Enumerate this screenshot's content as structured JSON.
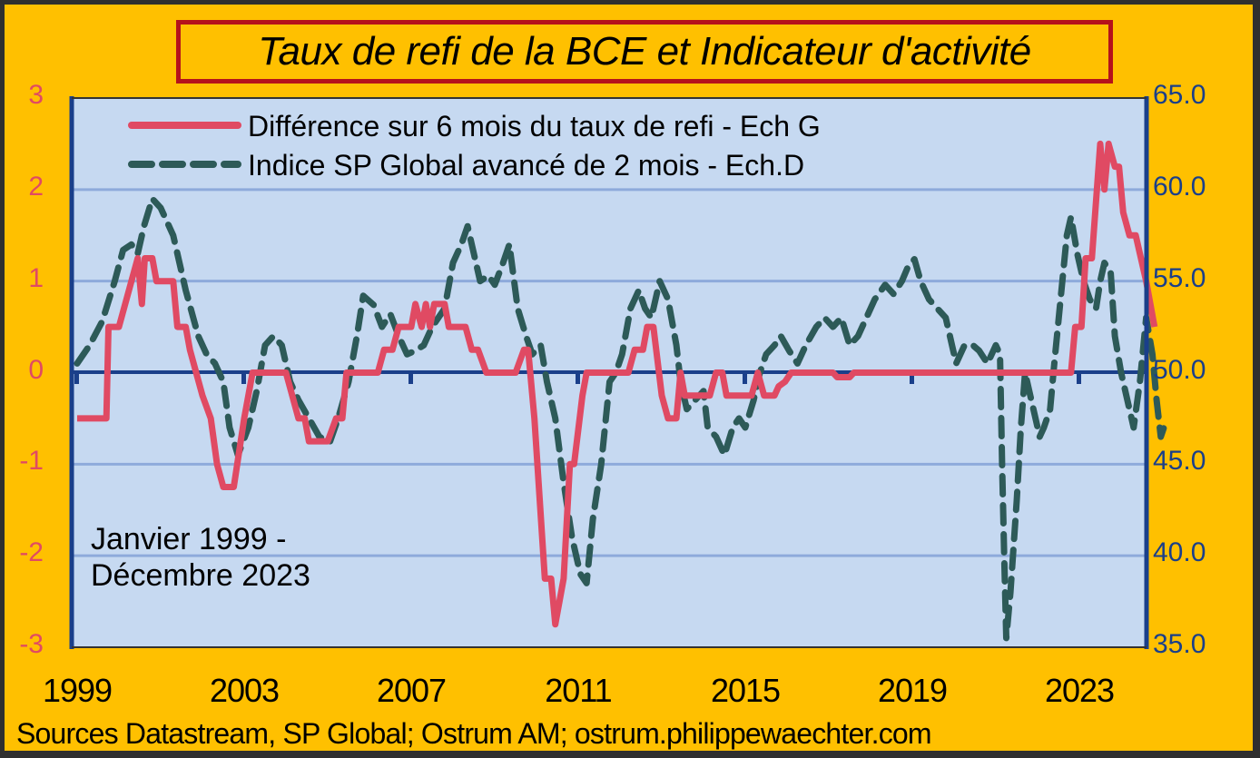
{
  "title": "Taux de refi de la BCE et Indicateur d'activité",
  "source": "Sources Datastream, SP Global; Ostrum AM; ostrum.philippewaechter.com",
  "annotation": {
    "line1": "Janvier 1999 -",
    "line2": "Décembre 2023"
  },
  "colors": {
    "background": "#ffc000",
    "plot_bg": "#c6d9f1",
    "grid": "#8eaadb",
    "zero_line": "#1a3f8a",
    "refi": "#e04a63",
    "pmi": "#2d5a58",
    "title_border": "#b5121b",
    "left_axis": "#e04a63",
    "right_axis": "#1a3f8a"
  },
  "chart_data": {
    "type": "line",
    "title": "Taux de refi de la BCE et Indicateur d'activité",
    "xlabel": "",
    "x_ticks": [
      "1999",
      "2003",
      "2007",
      "2011",
      "2015",
      "2019",
      "2023"
    ],
    "x_range": [
      1999.0,
      2024.0
    ],
    "left_axis": {
      "label": "Ech G",
      "ticks": [
        "3",
        "2",
        "1",
        "0",
        "-1",
        "-2",
        "-3"
      ],
      "ylim": [
        -3,
        3
      ]
    },
    "right_axis": {
      "label": "Ech.D",
      "ticks": [
        "65.0",
        "60.0",
        "55.0",
        "50.0",
        "45.0",
        "40.0",
        "35.0"
      ],
      "ylim": [
        35,
        65
      ]
    },
    "grid": true,
    "legend_position": "top-left inside",
    "series": [
      {
        "name": "Différence sur 6 mois du taux de refi - Ech G",
        "axis": "left",
        "style": "solid",
        "points": [
          [
            1999.0,
            -0.5
          ],
          [
            1999.7,
            -0.5
          ],
          [
            1999.75,
            0.5
          ],
          [
            2000.0,
            0.5
          ],
          [
            2000.3,
            1.0
          ],
          [
            2000.45,
            1.25
          ],
          [
            2000.55,
            0.75
          ],
          [
            2000.62,
            1.25
          ],
          [
            2000.8,
            1.25
          ],
          [
            2000.9,
            1.0
          ],
          [
            2001.3,
            1.0
          ],
          [
            2001.4,
            0.5
          ],
          [
            2001.6,
            0.5
          ],
          [
            2001.7,
            0.25
          ],
          [
            2002.0,
            -0.25
          ],
          [
            2002.2,
            -0.5
          ],
          [
            2002.35,
            -1.0
          ],
          [
            2002.5,
            -1.25
          ],
          [
            2002.75,
            -1.25
          ],
          [
            2003.0,
            -0.5
          ],
          [
            2003.1,
            -0.25
          ],
          [
            2003.2,
            0.0
          ],
          [
            2004.0,
            0.0
          ],
          [
            2004.15,
            -0.25
          ],
          [
            2004.3,
            -0.5
          ],
          [
            2004.45,
            -0.5
          ],
          [
            2004.55,
            -0.75
          ],
          [
            2005.0,
            -0.75
          ],
          [
            2005.2,
            -0.5
          ],
          [
            2005.35,
            -0.5
          ],
          [
            2005.45,
            0.0
          ],
          [
            2006.2,
            0.0
          ],
          [
            2006.35,
            0.25
          ],
          [
            2006.55,
            0.25
          ],
          [
            2006.7,
            0.5
          ],
          [
            2007.0,
            0.5
          ],
          [
            2007.1,
            0.75
          ],
          [
            2007.25,
            0.5
          ],
          [
            2007.35,
            0.75
          ],
          [
            2007.45,
            0.5
          ],
          [
            2007.55,
            0.75
          ],
          [
            2007.8,
            0.75
          ],
          [
            2007.9,
            0.5
          ],
          [
            2008.3,
            0.5
          ],
          [
            2008.45,
            0.25
          ],
          [
            2008.6,
            0.25
          ],
          [
            2008.8,
            0.0
          ],
          [
            2009.5,
            0.0
          ],
          [
            2009.7,
            0.25
          ],
          [
            2009.8,
            0.25
          ],
          [
            2009.95,
            -0.5
          ],
          [
            2010.2,
            -2.25
          ],
          [
            2010.35,
            -2.25
          ],
          [
            2010.45,
            -2.75
          ],
          [
            2010.65,
            -2.25
          ],
          [
            2010.8,
            -1.0
          ],
          [
            2010.9,
            -1.0
          ],
          [
            2011.1,
            -0.25
          ],
          [
            2011.2,
            0.0
          ],
          [
            2012.2,
            0.0
          ],
          [
            2012.35,
            0.25
          ],
          [
            2012.55,
            0.25
          ],
          [
            2012.65,
            0.5
          ],
          [
            2012.8,
            0.5
          ],
          [
            2013.0,
            -0.25
          ],
          [
            2013.15,
            -0.5
          ],
          [
            2013.35,
            -0.5
          ],
          [
            2013.45,
            0.0
          ],
          [
            2013.55,
            -0.25
          ],
          [
            2014.15,
            -0.25
          ],
          [
            2014.3,
            0.0
          ],
          [
            2014.45,
            0.0
          ],
          [
            2014.55,
            -0.25
          ],
          [
            2015.15,
            -0.25
          ],
          [
            2015.3,
            0.0
          ],
          [
            2015.45,
            -0.25
          ],
          [
            2015.7,
            -0.25
          ],
          [
            2015.8,
            -0.15
          ],
          [
            2015.95,
            -0.1
          ],
          [
            2016.1,
            0.0
          ],
          [
            2017.1,
            0.0
          ],
          [
            2017.2,
            -0.05
          ],
          [
            2017.5,
            -0.05
          ],
          [
            2017.6,
            0.0
          ],
          [
            2022.8,
            0.0
          ],
          [
            2022.9,
            0.5
          ],
          [
            2023.05,
            0.5
          ],
          [
            2023.15,
            1.25
          ],
          [
            2023.3,
            1.25
          ],
          [
            2023.5,
            2.5
          ],
          [
            2023.6,
            2.0
          ],
          [
            2023.7,
            2.5
          ],
          [
            2023.85,
            2.25
          ],
          [
            2023.95,
            2.25
          ],
          [
            2024.05,
            1.75
          ],
          [
            2024.2,
            1.5
          ],
          [
            2024.35,
            1.5
          ],
          [
            2024.6,
            1.0
          ],
          [
            2024.8,
            0.5
          ]
        ]
      },
      {
        "name": "Indice SP Global avancé de 2 mois - Ech.D",
        "axis": "right",
        "style": "dashed",
        "points": [
          [
            1999.0,
            50.5
          ],
          [
            1999.3,
            51.5
          ],
          [
            1999.6,
            52.8
          ],
          [
            1999.9,
            55.0
          ],
          [
            2000.1,
            56.7
          ],
          [
            2000.3,
            57.0
          ],
          [
            2000.45,
            56.5
          ],
          [
            2000.6,
            58.0
          ],
          [
            2000.8,
            59.5
          ],
          [
            2001.0,
            59.0
          ],
          [
            2001.3,
            57.5
          ],
          [
            2001.6,
            54.5
          ],
          [
            2001.9,
            52.0
          ],
          [
            2002.1,
            51.0
          ],
          [
            2002.3,
            50.5
          ],
          [
            2002.5,
            49.5
          ],
          [
            2002.65,
            47.0
          ],
          [
            2002.85,
            45.5
          ],
          [
            2003.1,
            47.0
          ],
          [
            2003.3,
            49.0
          ],
          [
            2003.5,
            51.5
          ],
          [
            2003.7,
            52.0
          ],
          [
            2003.9,
            51.5
          ],
          [
            2004.1,
            49.5
          ],
          [
            2004.3,
            48.5
          ],
          [
            2004.55,
            47.5
          ],
          [
            2004.8,
            46.5
          ],
          [
            2005.05,
            46.2
          ],
          [
            2005.25,
            47.5
          ],
          [
            2005.5,
            49.5
          ],
          [
            2005.7,
            52.0
          ],
          [
            2005.85,
            54.2
          ],
          [
            2006.1,
            53.7
          ],
          [
            2006.3,
            52.5
          ],
          [
            2006.5,
            53.2
          ],
          [
            2006.7,
            52.0
          ],
          [
            2006.9,
            51.0
          ],
          [
            2007.1,
            51.2
          ],
          [
            2007.3,
            51.5
          ],
          [
            2007.5,
            52.5
          ],
          [
            2007.8,
            53.5
          ],
          [
            2008.0,
            56.0
          ],
          [
            2008.2,
            57.0
          ],
          [
            2008.35,
            58.0
          ],
          [
            2008.5,
            56.5
          ],
          [
            2008.65,
            55.0
          ],
          [
            2008.85,
            55.3
          ],
          [
            2009.0,
            54.8
          ],
          [
            2009.2,
            56.0
          ],
          [
            2009.35,
            57.0
          ],
          [
            2009.55,
            53.5
          ],
          [
            2009.75,
            52.0
          ],
          [
            2009.9,
            51.0
          ],
          [
            2010.1,
            51.5
          ],
          [
            2010.25,
            49.5
          ],
          [
            2010.45,
            47.5
          ],
          [
            2010.65,
            44.0
          ],
          [
            2010.85,
            41.0
          ],
          [
            2011.05,
            39.0
          ],
          [
            2011.2,
            38.5
          ],
          [
            2011.35,
            42.0
          ],
          [
            2011.55,
            45.0
          ],
          [
            2011.75,
            49.5
          ],
          [
            2011.9,
            50.0
          ],
          [
            2012.05,
            51.0
          ],
          [
            2012.25,
            53.5
          ],
          [
            2012.45,
            54.5
          ],
          [
            2012.6,
            53.5
          ],
          [
            2012.75,
            53.0
          ],
          [
            2012.95,
            55.0
          ],
          [
            2013.15,
            54.0
          ],
          [
            2013.35,
            51.5
          ],
          [
            2013.45,
            49.5
          ],
          [
            2013.6,
            48.0
          ],
          [
            2013.8,
            48.5
          ],
          [
            2014.0,
            49.0
          ],
          [
            2014.1,
            47.0
          ],
          [
            2014.3,
            46.5
          ],
          [
            2014.5,
            45.5
          ],
          [
            2014.7,
            47.0
          ],
          [
            2014.85,
            47.5
          ],
          [
            2015.0,
            47.0
          ],
          [
            2015.2,
            48.5
          ],
          [
            2015.35,
            50.0
          ],
          [
            2015.5,
            51.0
          ],
          [
            2015.7,
            51.5
          ],
          [
            2015.85,
            52.0
          ],
          [
            2016.05,
            51.2
          ],
          [
            2016.25,
            50.5
          ],
          [
            2016.45,
            51.5
          ],
          [
            2016.7,
            52.5
          ],
          [
            2016.9,
            53.0
          ],
          [
            2017.1,
            52.5
          ],
          [
            2017.3,
            53.0
          ],
          [
            2017.5,
            51.5
          ],
          [
            2017.7,
            52.0
          ],
          [
            2017.9,
            53.0
          ],
          [
            2018.1,
            54.0
          ],
          [
            2018.35,
            54.8
          ],
          [
            2018.55,
            54.3
          ],
          [
            2018.75,
            55.0
          ],
          [
            2018.9,
            55.8
          ],
          [
            2019.05,
            56.2
          ],
          [
            2019.2,
            55.0
          ],
          [
            2019.4,
            54.0
          ],
          [
            2019.6,
            53.5
          ],
          [
            2019.8,
            53.0
          ],
          [
            2019.95,
            51.5
          ],
          [
            2020.05,
            50.5
          ],
          [
            2020.25,
            51.5
          ],
          [
            2020.45,
            51.5
          ],
          [
            2020.6,
            51.2
          ],
          [
            2020.8,
            50.5
          ],
          [
            2021.0,
            51.5
          ],
          [
            2021.1,
            51.0
          ],
          [
            2021.15,
            45.0
          ],
          [
            2021.2,
            40.0
          ],
          [
            2021.25,
            35.5
          ],
          [
            2021.35,
            38.0
          ],
          [
            2021.5,
            43.0
          ],
          [
            2021.6,
            47.0
          ],
          [
            2021.7,
            50.0
          ],
          [
            2021.8,
            49.0
          ],
          [
            2021.95,
            47.5
          ],
          [
            2022.05,
            46.5
          ],
          [
            2022.15,
            47.0
          ],
          [
            2022.3,
            48.0
          ],
          [
            2022.4,
            50.5
          ],
          [
            2022.55,
            54.0
          ],
          [
            2022.7,
            57.5
          ],
          [
            2022.8,
            58.5
          ],
          [
            2022.95,
            56.5
          ],
          [
            2023.1,
            55.0
          ],
          [
            2023.25,
            54.0
          ],
          [
            2023.4,
            53.5
          ],
          [
            2023.5,
            55.0
          ],
          [
            2023.6,
            56.0
          ],
          [
            2023.75,
            55.5
          ],
          [
            2023.85,
            52.0
          ],
          [
            2024.0,
            50.0
          ],
          [
            2024.15,
            48.5
          ],
          [
            2024.3,
            47.0
          ],
          [
            2024.45,
            49.5
          ],
          [
            2024.6,
            53.0
          ],
          [
            2024.75,
            51.0
          ],
          [
            2024.85,
            48.5
          ],
          [
            2024.95,
            46.5
          ],
          [
            2025.1,
            47.5
          ]
        ]
      }
    ]
  }
}
